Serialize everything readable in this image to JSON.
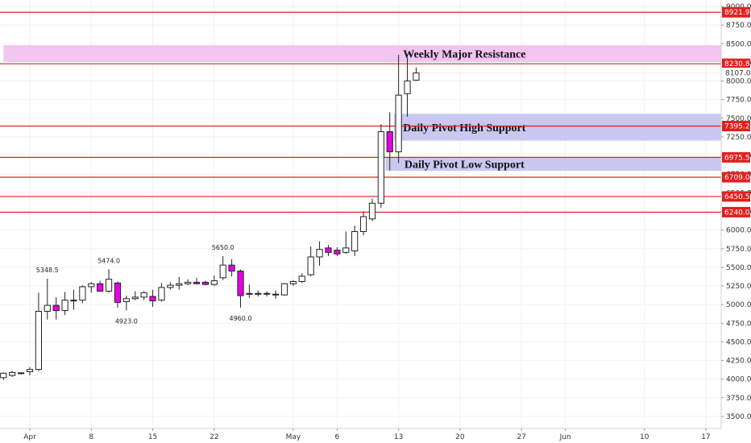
{
  "chart_data": {
    "type": "candlestick",
    "y_axis": {
      "ylim": [
        3350,
        9200
      ],
      "ticks": [
        3500,
        3750,
        4000,
        4250,
        4500,
        4750,
        5000,
        5250,
        5500,
        5750,
        6000,
        6250,
        6500,
        6750,
        7000,
        7250,
        7500,
        7750,
        8000,
        8250,
        8500,
        8750,
        9000
      ],
      "tick_labels": [
        "3500.0",
        "3750.0",
        "4000.0",
        "4250.0",
        "4500.0",
        "4750.0",
        "5000.0",
        "5250.0",
        "5500.0",
        "5750.0",
        "6000.0",
        "6250.0",
        "6500.0",
        "6750.0",
        "7000.0",
        "7250.0",
        "7500.0",
        "7750.0",
        "8000.0",
        "8250.0",
        "8500.0",
        "8750.0",
        "9000.0"
      ]
    },
    "x_axis": {
      "labels": [
        {
          "day": 1,
          "text": "Apr"
        },
        {
          "day": 8,
          "text": "8"
        },
        {
          "day": 15,
          "text": "15"
        },
        {
          "day": 22,
          "text": "22"
        },
        {
          "day": 31,
          "text": "May"
        },
        {
          "day": 36,
          "text": "6"
        },
        {
          "day": 43,
          "text": "13"
        },
        {
          "day": 50,
          "text": "20"
        },
        {
          "day": 57,
          "text": "27"
        },
        {
          "day": 62,
          "text": "Jun"
        },
        {
          "day": 71,
          "text": "10"
        },
        {
          "day": 78,
          "text": "17"
        }
      ],
      "day_range": [
        -2,
        79
      ]
    },
    "zones": [
      {
        "low": 8255,
        "high": 8480,
        "color": "#f2c4f0",
        "text": "Weekly Major Resistance",
        "x_start_day": -2
      },
      {
        "low": 7200,
        "high": 7560,
        "color": "#c8c8f0",
        "text": "Daily Pivot High Support",
        "x_start_day": 42.5
      },
      {
        "low": 6795,
        "high": 6975.5,
        "color": "#c8c8f0",
        "text": "Daily Pivot Low Support",
        "x_start_day": 41.5
      }
    ],
    "horizontal_lines": [
      {
        "value": 8921.9,
        "label": "8921.9",
        "color": "#e02020"
      },
      {
        "value": 8230.8,
        "label": "8230.8",
        "color": "#e02020"
      },
      {
        "value": 7395.2,
        "label": "7395.2",
        "color": "#e02020"
      },
      {
        "value": 6975.5,
        "label": "6975.5",
        "color": "#e02020"
      },
      {
        "value": 6709.0,
        "label": "6709.0",
        "color": "#e02020"
      },
      {
        "value": 6450.5,
        "label": "6450.5",
        "color": "#e02020"
      },
      {
        "value": 6240.0,
        "label": "6240.0",
        "color": "#e02020"
      }
    ],
    "current_price": {
      "value": 8107.0,
      "label": "8107.0"
    },
    "annotations": [
      {
        "day": 3,
        "value": 5348.5,
        "text": "5348.5",
        "position": "above"
      },
      {
        "day": 10,
        "value": 5474.0,
        "text": "5474.0",
        "position": "above"
      },
      {
        "day": 12,
        "value": 4923.0,
        "text": "4923.0",
        "position": "below"
      },
      {
        "day": 23,
        "value": 5650.0,
        "text": "5650.0",
        "position": "above"
      },
      {
        "day": 25,
        "value": 4960.0,
        "text": "4960.0",
        "position": "below"
      }
    ],
    "candles": [
      {
        "day": -2,
        "open": 4020,
        "high": 4090,
        "low": 3990,
        "close": 4080
      },
      {
        "day": -1,
        "open": 4050,
        "high": 4110,
        "low": 4030,
        "close": 4090
      },
      {
        "day": 0,
        "open": 4080,
        "high": 4090,
        "low": 4060,
        "close": 4085
      },
      {
        "day": 1,
        "open": 4100,
        "high": 4160,
        "low": 4050,
        "close": 4130
      },
      {
        "day": 2,
        "open": 4130,
        "high": 5160,
        "low": 4110,
        "close": 4910
      },
      {
        "day": 3,
        "open": 4910,
        "high": 5348.5,
        "low": 4800,
        "close": 4990
      },
      {
        "day": 4,
        "open": 4990,
        "high": 5100,
        "low": 4800,
        "close": 4920
      },
      {
        "day": 5,
        "open": 4920,
        "high": 5170,
        "low": 4860,
        "close": 5060
      },
      {
        "day": 6,
        "open": 5050,
        "high": 5200,
        "low": 4930,
        "close": 5060
      },
      {
        "day": 7,
        "open": 5060,
        "high": 5260,
        "low": 5020,
        "close": 5240
      },
      {
        "day": 8,
        "open": 5240,
        "high": 5300,
        "low": 5160,
        "close": 5280
      },
      {
        "day": 9,
        "open": 5280,
        "high": 5320,
        "low": 5180,
        "close": 5180
      },
      {
        "day": 10,
        "open": 5180,
        "high": 5474,
        "low": 5160,
        "close": 5340
      },
      {
        "day": 11,
        "open": 5290,
        "high": 5310,
        "low": 4960,
        "close": 5030
      },
      {
        "day": 12,
        "open": 5040,
        "high": 5120,
        "low": 4923,
        "close": 5080
      },
      {
        "day": 13,
        "open": 5080,
        "high": 5180,
        "low": 5060,
        "close": 5100
      },
      {
        "day": 14,
        "open": 5100,
        "high": 5180,
        "low": 5060,
        "close": 5160
      },
      {
        "day": 15,
        "open": 5110,
        "high": 5200,
        "low": 4970,
        "close": 5050
      },
      {
        "day": 16,
        "open": 5060,
        "high": 5290,
        "low": 5040,
        "close": 5230
      },
      {
        "day": 17,
        "open": 5230,
        "high": 5300,
        "low": 5200,
        "close": 5260
      },
      {
        "day": 18,
        "open": 5260,
        "high": 5370,
        "low": 5200,
        "close": 5280
      },
      {
        "day": 19,
        "open": 5280,
        "high": 5340,
        "low": 5260,
        "close": 5300
      },
      {
        "day": 20,
        "open": 5300,
        "high": 5360,
        "low": 5270,
        "close": 5280
      },
      {
        "day": 21,
        "open": 5300,
        "high": 5320,
        "low": 5260,
        "close": 5270
      },
      {
        "day": 22,
        "open": 5270,
        "high": 5390,
        "low": 5250,
        "close": 5320
      },
      {
        "day": 23,
        "open": 5360,
        "high": 5650,
        "low": 5330,
        "close": 5530
      },
      {
        "day": 24,
        "open": 5530,
        "high": 5610,
        "low": 5380,
        "close": 5450
      },
      {
        "day": 25,
        "open": 5450,
        "high": 5470,
        "low": 4960,
        "close": 5120
      },
      {
        "day": 26,
        "open": 5140,
        "high": 5270,
        "low": 5090,
        "close": 5150
      },
      {
        "day": 27,
        "open": 5150,
        "high": 5190,
        "low": 5110,
        "close": 5140
      },
      {
        "day": 28,
        "open": 5140,
        "high": 5180,
        "low": 5110,
        "close": 5150
      },
      {
        "day": 29,
        "open": 5140,
        "high": 5190,
        "low": 5080,
        "close": 5130
      },
      {
        "day": 30,
        "open": 5130,
        "high": 5290,
        "low": 5120,
        "close": 5280
      },
      {
        "day": 31,
        "open": 5280,
        "high": 5330,
        "low": 5250,
        "close": 5310
      },
      {
        "day": 32,
        "open": 5310,
        "high": 5420,
        "low": 5290,
        "close": 5380
      },
      {
        "day": 33,
        "open": 5400,
        "high": 5780,
        "low": 5380,
        "close": 5640
      },
      {
        "day": 34,
        "open": 5640,
        "high": 5850,
        "low": 5520,
        "close": 5740
      },
      {
        "day": 35,
        "open": 5760,
        "high": 5800,
        "low": 5650,
        "close": 5700
      },
      {
        "day": 36,
        "open": 5730,
        "high": 5770,
        "low": 5650,
        "close": 5680
      },
      {
        "day": 37,
        "open": 5700,
        "high": 5980,
        "low": 5680,
        "close": 5760
      },
      {
        "day": 38,
        "open": 5720,
        "high": 6060,
        "low": 5650,
        "close": 5980
      },
      {
        "day": 39,
        "open": 5980,
        "high": 6250,
        "low": 5930,
        "close": 6180
      },
      {
        "day": 40,
        "open": 6150,
        "high": 6420,
        "low": 6120,
        "close": 6360
      },
      {
        "day": 41,
        "open": 6360,
        "high": 7420,
        "low": 6300,
        "close": 7320
      },
      {
        "day": 42,
        "open": 7320,
        "high": 7580,
        "low": 6800,
        "close": 7050
      },
      {
        "day": 43,
        "open": 7050,
        "high": 8350,
        "low": 6900,
        "close": 7810
      },
      {
        "day": 44,
        "open": 7830,
        "high": 8320,
        "low": 7520,
        "close": 8000
      },
      {
        "day": 45,
        "open": 8010,
        "high": 8180,
        "low": 8000,
        "close": 8107
      }
    ]
  }
}
